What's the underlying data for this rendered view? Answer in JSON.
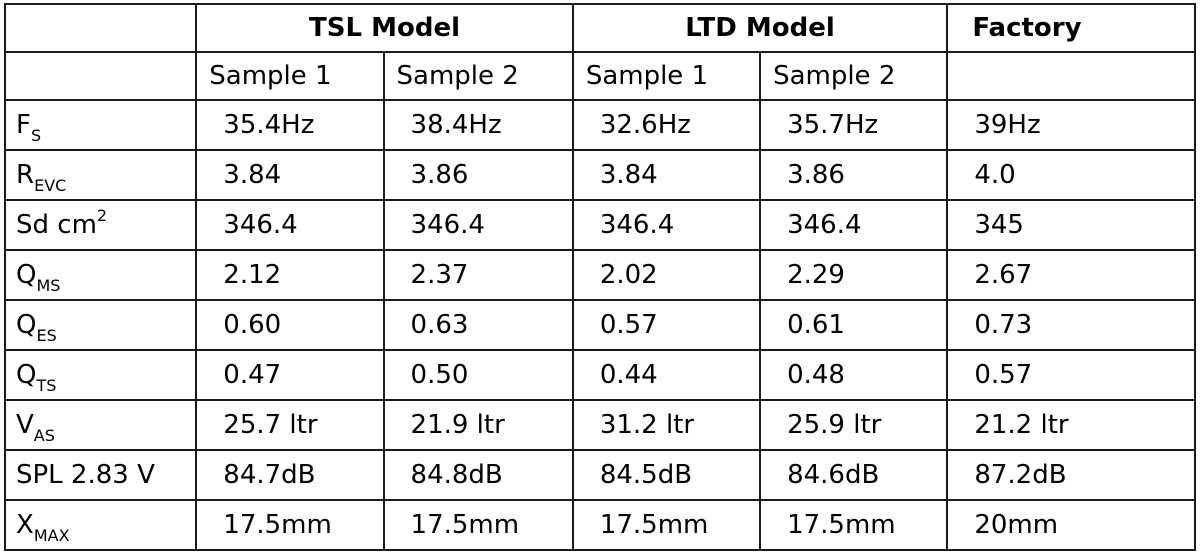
{
  "header": {
    "groups": [
      "TSL Model",
      "LTD Model",
      "Factory"
    ],
    "samples": [
      "Sample 1",
      "Sample 2",
      "Sample 1",
      "Sample 2"
    ]
  },
  "rows": [
    {
      "label": {
        "main": "F",
        "sub": "S"
      },
      "values": [
        "35.4Hz",
        "38.4Hz",
        "32.6Hz",
        "35.7Hz",
        "39Hz"
      ]
    },
    {
      "label": {
        "main": "R",
        "sub": "EVC"
      },
      "values": [
        "3.84",
        "3.86",
        "3.84",
        "3.86",
        "4.0"
      ]
    },
    {
      "label": {
        "main": "Sd cm",
        "sup": "2"
      },
      "values": [
        "346.4",
        "346.4",
        "346.4",
        "346.4",
        "345"
      ]
    },
    {
      "label": {
        "main": "Q",
        "sub": "MS"
      },
      "values": [
        "2.12",
        "2.37",
        "2.02",
        "2.29",
        "2.67"
      ]
    },
    {
      "label": {
        "main": "Q",
        "sub": "ES"
      },
      "values": [
        "0.60",
        "0.63",
        "0.57",
        "0.61",
        "0.73"
      ]
    },
    {
      "label": {
        "main": "Q",
        "sub": "TS"
      },
      "values": [
        "0.47",
        "0.50",
        "0.44",
        "0.48",
        "0.57"
      ]
    },
    {
      "label": {
        "main": "V",
        "sub": "AS"
      },
      "values": [
        "25.7 ltr",
        "21.9 ltr",
        "31.2 ltr",
        "25.9 ltr",
        "21.2 ltr"
      ]
    },
    {
      "label": {
        "main": "SPL 2.83 V"
      },
      "values": [
        "84.7dB",
        "84.8dB",
        "84.5dB",
        "84.6dB",
        "87.2dB"
      ]
    },
    {
      "label": {
        "main": "X",
        "sub": "MAX"
      },
      "values": [
        "17.5mm",
        "17.5mm",
        "17.5mm",
        "17.5mm",
        "20mm"
      ]
    }
  ]
}
